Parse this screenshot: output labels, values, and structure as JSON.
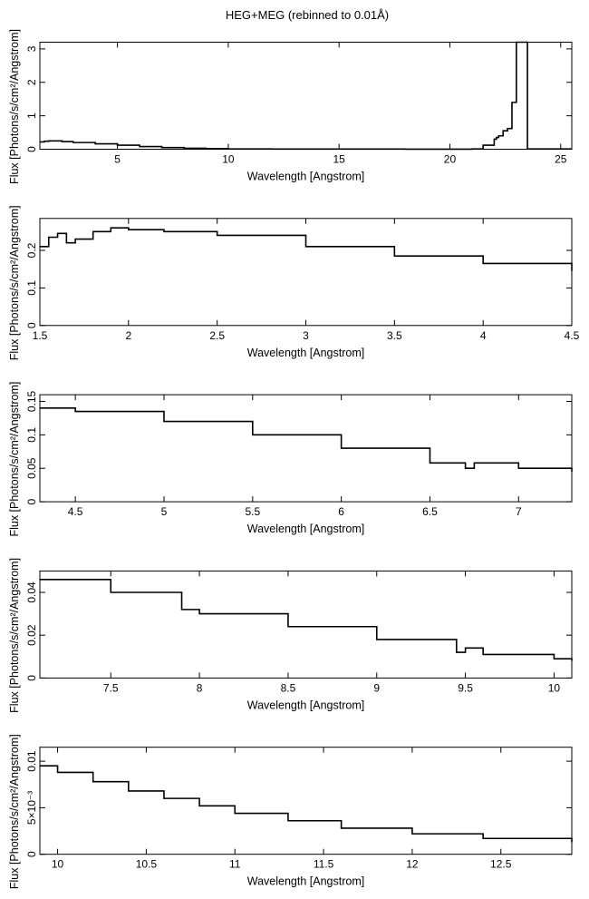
{
  "figure": {
    "title": "HEG+MEG (rebinned to 0.01Å)"
  },
  "chart_data": [
    {
      "type": "line",
      "xlabel": "Wavelength [Angstrom]",
      "ylabel": "Flux [Photons/s/cm²/Angstrom]",
      "xlim": [
        1.5,
        25.5
      ],
      "ylim": [
        0,
        3.2
      ],
      "xticks": [
        5,
        10,
        15,
        20,
        25
      ],
      "yticks": [
        0,
        1,
        2,
        3
      ],
      "series": [
        {
          "x": [
            1.5,
            1.7,
            1.9,
            2.5,
            3.0,
            4.0,
            5.0,
            6.0,
            7.0,
            8.0,
            9.0,
            10.0,
            12.0,
            15.0,
            18.0,
            20.0,
            21.0,
            21.5,
            22.0,
            22.1,
            22.2,
            22.4,
            22.6,
            22.8,
            23.0,
            23.5,
            25.5
          ],
          "y": [
            0.22,
            0.24,
            0.25,
            0.23,
            0.2,
            0.16,
            0.12,
            0.08,
            0.05,
            0.03,
            0.02,
            0.01,
            0.006,
            0.004,
            0.003,
            0.003,
            0.01,
            0.12,
            0.3,
            0.35,
            0.4,
            0.55,
            0.62,
            1.4,
            3.2,
            0.01,
            0.01
          ]
        }
      ]
    },
    {
      "type": "line",
      "xlabel": "Wavelength [Angstrom]",
      "ylabel": "Flux [Photons/s/cm²/Angstrom]",
      "xlim": [
        1.5,
        4.5
      ],
      "ylim": [
        0,
        0.285
      ],
      "xticks": [
        1.5,
        2,
        2.5,
        3,
        3.5,
        4,
        4.5
      ],
      "yticks": [
        0,
        0.1,
        0.2
      ],
      "series": [
        {
          "x": [
            1.5,
            1.55,
            1.6,
            1.65,
            1.7,
            1.8,
            1.9,
            2.0,
            2.2,
            2.5,
            3.0,
            3.5,
            4.0,
            4.5
          ],
          "y": [
            0.21,
            0.235,
            0.245,
            0.22,
            0.23,
            0.25,
            0.26,
            0.255,
            0.25,
            0.24,
            0.21,
            0.185,
            0.165,
            0.145
          ]
        }
      ]
    },
    {
      "type": "line",
      "xlabel": "Wavelength [Angstrom]",
      "ylabel": "Flux [Photons/s/cm²/Angstrom]",
      "xlim": [
        4.3,
        7.3
      ],
      "ylim": [
        0,
        0.16
      ],
      "xticks": [
        4.5,
        5,
        5.5,
        6,
        6.5,
        7
      ],
      "yticks": [
        0,
        0.05,
        0.1,
        0.15
      ],
      "series": [
        {
          "x": [
            4.3,
            4.5,
            5.0,
            5.5,
            6.0,
            6.5,
            6.7,
            6.75,
            7.0,
            7.3
          ],
          "y": [
            0.14,
            0.135,
            0.12,
            0.1,
            0.08,
            0.058,
            0.05,
            0.058,
            0.05,
            0.045
          ]
        }
      ]
    },
    {
      "type": "line",
      "xlabel": "Wavelength [Angstrom]",
      "ylabel": "Flux [Photons/s/cm²/Angstrom]",
      "xlim": [
        7.1,
        10.1
      ],
      "ylim": [
        0,
        0.05
      ],
      "xticks": [
        7.5,
        8,
        8.5,
        9,
        9.5,
        10
      ],
      "yticks": [
        0,
        0.02,
        0.04
      ],
      "series": [
        {
          "x": [
            7.1,
            7.5,
            7.9,
            8.0,
            8.5,
            9.0,
            9.45,
            9.5,
            9.6,
            10.0,
            10.1
          ],
          "y": [
            0.046,
            0.04,
            0.032,
            0.03,
            0.024,
            0.018,
            0.012,
            0.014,
            0.011,
            0.009,
            0.008
          ]
        }
      ]
    },
    {
      "type": "line",
      "xlabel": "Wavelength [Angstrom]",
      "ylabel": "Flux [Photons/s/cm²/Angstrom]",
      "xlim": [
        9.9,
        12.9
      ],
      "ylim": [
        0,
        0.0115
      ],
      "xticks": [
        10,
        10.5,
        11,
        11.5,
        12,
        12.5
      ],
      "yticks": [
        0,
        0.005,
        0.01
      ],
      "ytick_labels": [
        "0",
        "5×10⁻³",
        "0.01"
      ],
      "series": [
        {
          "x": [
            9.9,
            10.0,
            10.2,
            10.4,
            10.6,
            10.8,
            11.0,
            11.3,
            11.6,
            12.0,
            12.4,
            12.9
          ],
          "y": [
            0.0095,
            0.0088,
            0.0078,
            0.0068,
            0.006,
            0.0052,
            0.0044,
            0.0036,
            0.0028,
            0.0022,
            0.0017,
            0.0013
          ]
        }
      ]
    }
  ]
}
